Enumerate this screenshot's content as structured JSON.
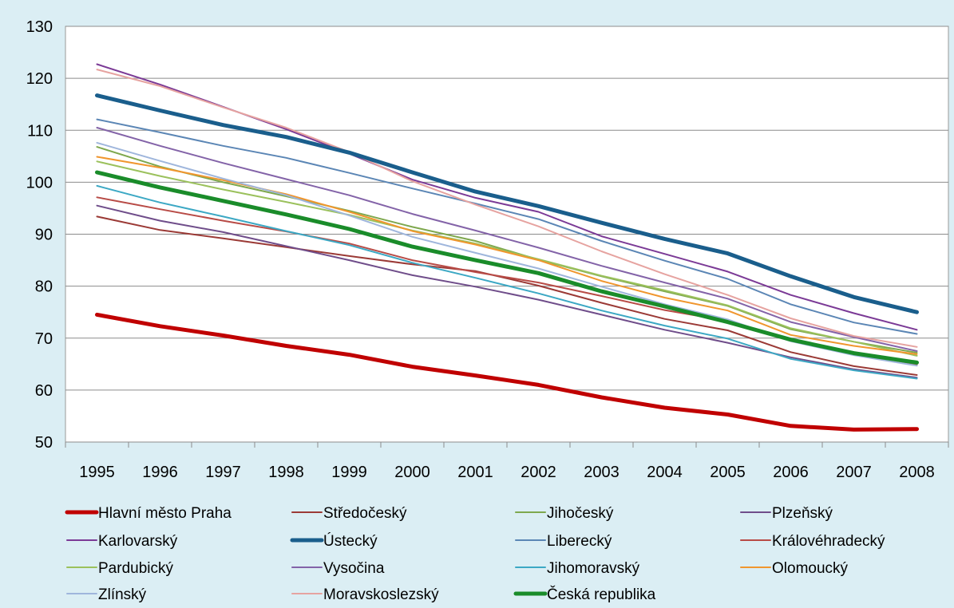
{
  "chart_data": {
    "type": "line",
    "title": "",
    "xlabel": "",
    "ylabel": "",
    "ylim": [
      50,
      130
    ],
    "yticks": [
      50,
      60,
      70,
      80,
      90,
      100,
      110,
      120,
      130
    ],
    "grid": true,
    "legend_position": "bottom",
    "x": [
      "1995",
      "1996",
      "1997",
      "1998",
      "1999",
      "2000",
      "2001",
      "2002",
      "2003",
      "2004",
      "2005",
      "2006",
      "2007",
      "2008"
    ],
    "series": [
      {
        "name": "Hlavní město Praha",
        "color": "#c00000",
        "bold": true,
        "values": [
          74.5,
          72.3,
          70.5,
          68.5,
          66.8,
          64.5,
          62.8,
          61.0,
          58.6,
          56.6,
          55.3,
          53.1,
          52.4,
          52.5
        ]
      },
      {
        "name": "Středočeský",
        "color": "#9b3a36",
        "values": [
          93.4,
          90.8,
          89.2,
          87.5,
          85.8,
          84.2,
          82.9,
          80.1,
          76.8,
          73.7,
          71.5,
          67.3,
          64.6,
          62.9
        ]
      },
      {
        "name": "Jihočeský",
        "color": "#7ea84e",
        "values": [
          106.8,
          103.0,
          100.0,
          97.3,
          94.5,
          91.4,
          88.7,
          85.1,
          81.9,
          79.0,
          76.2,
          71.7,
          69.3,
          67.2
        ]
      },
      {
        "name": "Plzeňský",
        "color": "#6f4d8a",
        "values": [
          95.5,
          92.6,
          90.4,
          87.7,
          85.0,
          82.1,
          79.9,
          77.4,
          74.5,
          71.6,
          69.1,
          66.3,
          64.0,
          62.4
        ]
      },
      {
        "name": "Karlovarský",
        "color": "#7b3a96",
        "values": [
          122.7,
          118.8,
          114.5,
          110.2,
          105.5,
          100.5,
          97.0,
          94.3,
          89.6,
          86.2,
          82.8,
          78.3,
          74.8,
          71.6
        ]
      },
      {
        "name": "Ústecký",
        "color": "#1a5e8c",
        "bold": true,
        "values": [
          116.7,
          113.8,
          111.0,
          108.7,
          105.7,
          101.9,
          98.2,
          95.4,
          92.2,
          89.1,
          86.3,
          81.9,
          77.9,
          75.0
        ]
      },
      {
        "name": "Liberecký",
        "color": "#5b86b5",
        "values": [
          112.1,
          109.6,
          107.0,
          104.7,
          101.8,
          98.8,
          95.9,
          92.9,
          88.7,
          84.9,
          81.4,
          76.5,
          73.0,
          70.8
        ]
      },
      {
        "name": "Královéhradecký",
        "color": "#b84b46",
        "values": [
          97.1,
          94.8,
          92.6,
          90.5,
          88.2,
          85.0,
          82.7,
          80.7,
          78.1,
          75.4,
          73.3,
          69.5,
          67.0,
          64.9
        ]
      },
      {
        "name": "Pardubický",
        "color": "#9bc15c",
        "values": [
          104.0,
          101.2,
          98.6,
          96.2,
          93.7,
          90.7,
          88.2,
          85.2,
          82.0,
          79.2,
          76.3,
          71.9,
          69.3,
          66.6
        ]
      },
      {
        "name": "Vysočina",
        "color": "#8363a8",
        "values": [
          110.5,
          107.0,
          103.7,
          100.6,
          97.5,
          93.9,
          90.7,
          87.4,
          83.9,
          80.7,
          77.6,
          73.1,
          70.2,
          67.5
        ]
      },
      {
        "name": "Jihomoravský",
        "color": "#3ca8c4",
        "values": [
          99.3,
          96.1,
          93.4,
          90.6,
          87.9,
          84.5,
          81.6,
          78.6,
          75.3,
          72.4,
          69.9,
          66.0,
          63.8,
          62.2
        ]
      },
      {
        "name": "Olomoucký",
        "color": "#f0962e",
        "values": [
          104.9,
          102.8,
          100.4,
          97.7,
          94.3,
          90.6,
          88.0,
          85.0,
          81.0,
          77.8,
          75.3,
          70.6,
          68.5,
          66.9
        ]
      },
      {
        "name": "Zlínský",
        "color": "#9fb6dc",
        "values": [
          107.6,
          104.1,
          100.7,
          97.5,
          93.6,
          89.5,
          86.4,
          83.4,
          79.9,
          76.5,
          73.6,
          69.4,
          66.7,
          64.7
        ]
      },
      {
        "name": "Moravskoslezský",
        "color": "#e6a3a0",
        "values": [
          121.7,
          118.5,
          114.4,
          110.5,
          105.8,
          100.2,
          95.7,
          91.5,
          86.7,
          82.3,
          78.3,
          73.8,
          70.4,
          68.3
        ]
      },
      {
        "name": "Česká republika",
        "color": "#1a8c2a",
        "bold": true,
        "values": [
          101.9,
          99.0,
          96.4,
          93.8,
          91.0,
          87.6,
          85.0,
          82.5,
          79.0,
          76.1,
          73.1,
          69.7,
          67.1,
          65.3
        ]
      }
    ]
  }
}
